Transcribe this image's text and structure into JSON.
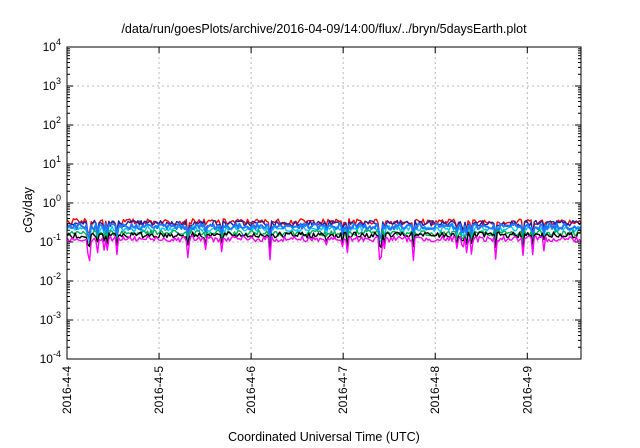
{
  "chart_data": {
    "type": "line",
    "title": "/data/run/goesPlots/archive/2016-04-09/14:00/flux/../bryn/5daysEarth.plot",
    "xlabel": "Coordinated Universal Time (UTC)",
    "ylabel": "cGy/day",
    "y_scale": "log",
    "ylim": [
      0.0001,
      10000
    ],
    "xlim": [
      "2016-04-04 00:00",
      "2016-04-09 14:00"
    ],
    "grid": true,
    "legend": "none",
    "y_ticks": [
      {
        "base": "10",
        "exp": "-4",
        "value": 0.0001
      },
      {
        "base": "10",
        "exp": "-3",
        "value": 0.001
      },
      {
        "base": "10",
        "exp": "-2",
        "value": 0.01
      },
      {
        "base": "10",
        "exp": "-1",
        "value": 0.1
      },
      {
        "base": "10",
        "exp": "0",
        "value": 1
      },
      {
        "base": "10",
        "exp": "1",
        "value": 10
      },
      {
        "base": "10",
        "exp": "2",
        "value": 100
      },
      {
        "base": "10",
        "exp": "3",
        "value": 1000
      },
      {
        "base": "10",
        "exp": "4",
        "value": 10000
      }
    ],
    "x_ticks": [
      {
        "label": "2016-4-4",
        "date": "2016-04-04 00:00"
      },
      {
        "label": "2016-4-5",
        "date": "2016-04-05 00:00"
      },
      {
        "label": "2016-4-6",
        "date": "2016-04-06 00:00"
      },
      {
        "label": "2016-4-7",
        "date": "2016-04-07 00:00"
      },
      {
        "label": "2016-4-8",
        "date": "2016-04-08 00:00"
      },
      {
        "label": "2016-4-9",
        "date": "2016-04-09 00:00"
      }
    ],
    "series": [
      {
        "color": "#ff0000",
        "level": 0.33
      },
      {
        "color": "#1f1fa0",
        "level": 0.3
      },
      {
        "color": "#00c8ff",
        "level": 0.22
      },
      {
        "color": "#1e78ff",
        "level": 0.25
      },
      {
        "color": "#00b050",
        "level": 0.17
      },
      {
        "color": "#000000",
        "level": 0.15
      },
      {
        "color": "#ff00ff",
        "level": 0.12
      }
    ]
  }
}
